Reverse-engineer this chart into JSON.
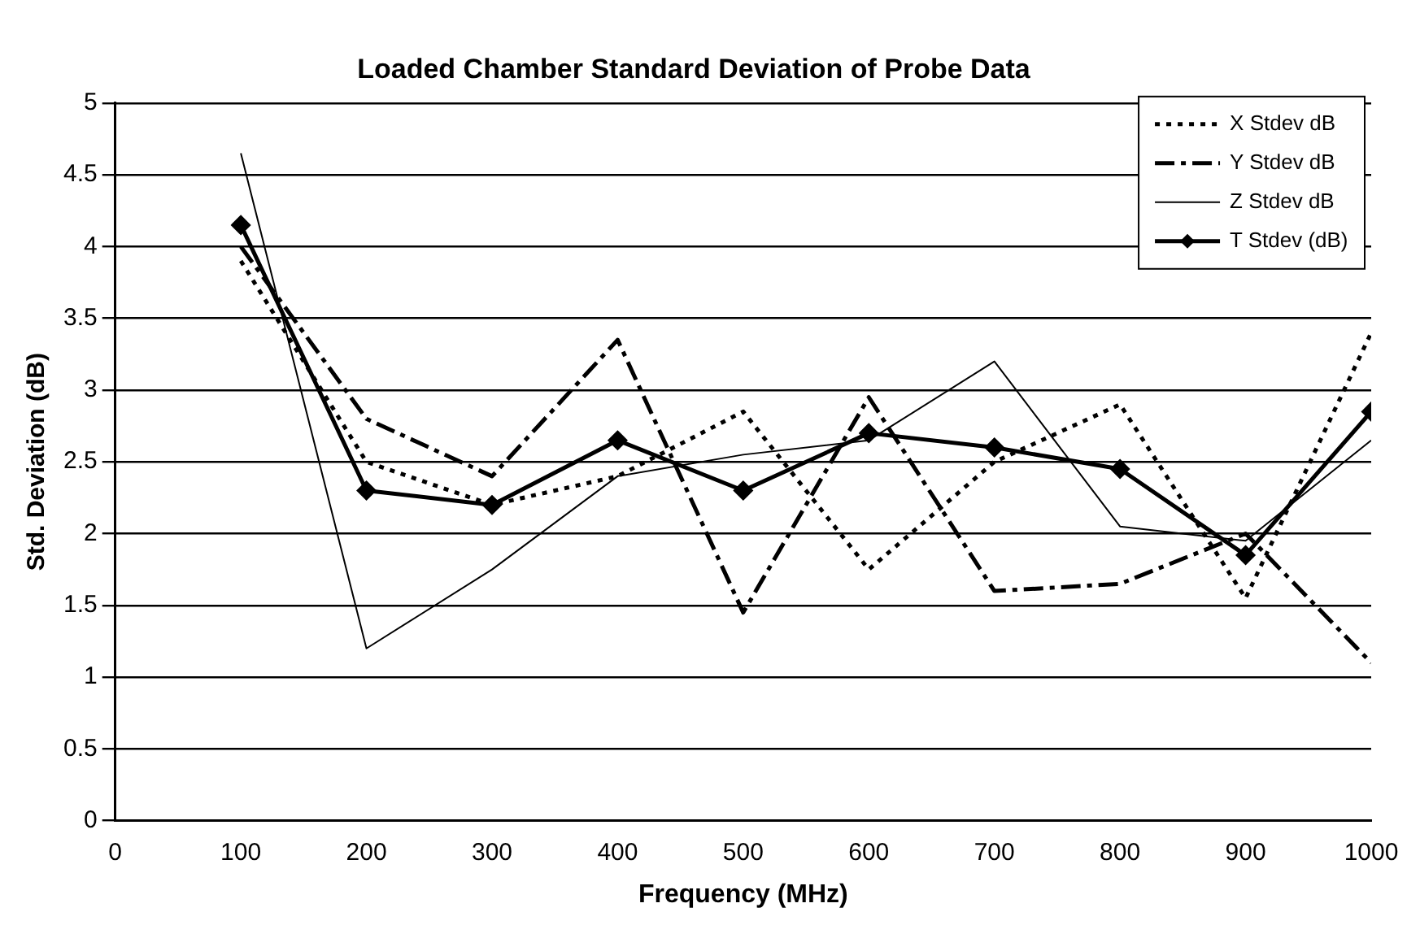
{
  "chart_data": {
    "type": "line",
    "title": "Loaded Chamber Standard Deviation of Probe Data",
    "xlabel": "Frequency (MHz)",
    "ylabel": "Std. Deviation (dB)",
    "x": [
      100,
      200,
      300,
      400,
      500,
      600,
      700,
      800,
      900,
      1000
    ],
    "series": [
      {
        "name": "X Stdev dB",
        "color": "#000000",
        "line_style": "dotted",
        "marker": "none",
        "values": [
          3.9,
          2.5,
          2.2,
          2.4,
          2.85,
          1.75,
          2.5,
          2.9,
          1.55,
          3.4
        ]
      },
      {
        "name": "Y Stdev dB",
        "color": "#000000",
        "line_style": "dashed",
        "marker": "none",
        "values": [
          4.0,
          2.8,
          2.4,
          3.35,
          1.45,
          2.95,
          1.6,
          1.65,
          2.0,
          1.1
        ]
      },
      {
        "name": "Z Stdev dB",
        "color": "#000000",
        "line_style": "solid",
        "marker": "none",
        "values": [
          4.65,
          1.2,
          1.75,
          2.4,
          2.55,
          2.65,
          3.2,
          2.05,
          1.95,
          2.65
        ]
      },
      {
        "name": "T Stdev (dB)",
        "color": "#000000",
        "line_style": "solid",
        "marker": "diamond",
        "values": [
          4.15,
          2.3,
          2.2,
          2.65,
          2.3,
          2.7,
          2.6,
          2.45,
          1.85,
          2.85
        ]
      }
    ],
    "xlim": [
      0,
      1000
    ],
    "xticks": [
      0,
      100,
      200,
      300,
      400,
      500,
      600,
      700,
      800,
      900,
      1000
    ],
    "ylim": [
      0,
      5
    ],
    "yticks": [
      0,
      0.5,
      1,
      1.5,
      2,
      2.5,
      3,
      3.5,
      4,
      4.5,
      5
    ],
    "grid": "y",
    "legend": "top right"
  }
}
